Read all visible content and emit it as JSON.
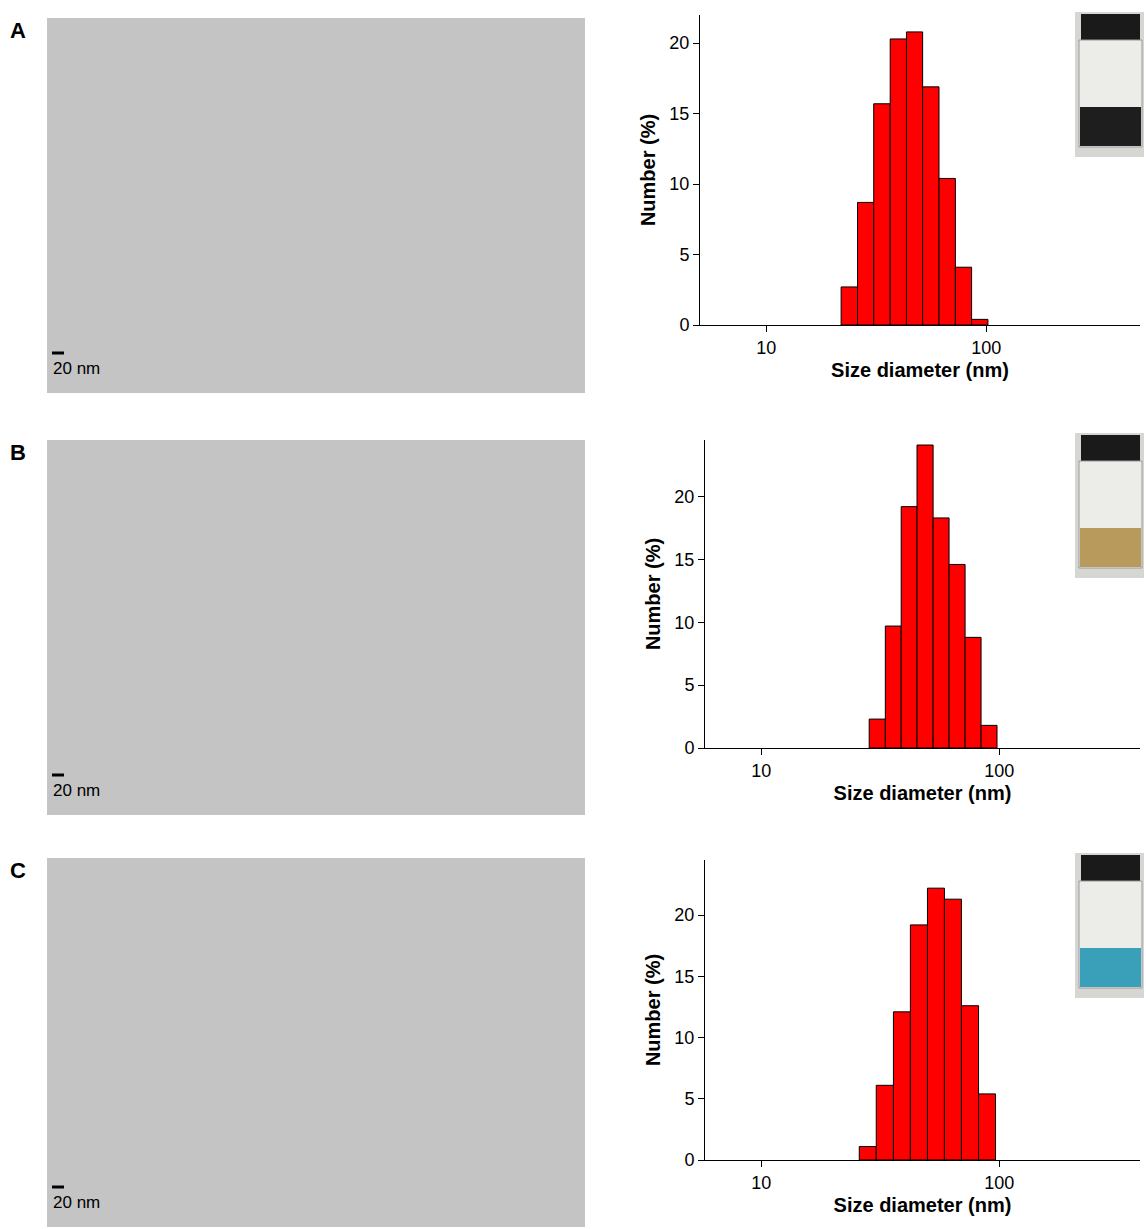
{
  "chart_data": [
    {
      "type": "histogram",
      "panel": "A",
      "scale_bar": "20 nm",
      "xlabel": "Size diameter (nm)",
      "ylabel": "Number (%)",
      "bins": [
        21.9,
        26.0,
        30.8,
        36.6,
        43.4,
        51.4,
        61.0,
        72.4,
        85.8,
        101.8
      ],
      "values": [
        2.7,
        8.7,
        15.7,
        20.3,
        20.8,
        16.9,
        10.4,
        4.1,
        0.4
      ],
      "color": "#ff0000",
      "log": "x",
      "grid": false,
      "xlim": [
        5,
        500
      ],
      "xticks": [
        10,
        100
      ],
      "ylim": [
        0,
        22
      ],
      "yticks": [
        0,
        5,
        10,
        15,
        20
      ]
    },
    {
      "type": "histogram",
      "panel": "B",
      "scale_bar": "20 nm",
      "xlabel": "Size diameter (nm)",
      "ylabel": "Number (%)",
      "bins": [
        28.4,
        33.2,
        38.7,
        45.1,
        52.7,
        61.5,
        71.8,
        83.8,
        97.8
      ],
      "values": [
        2.3,
        9.7,
        19.2,
        24.1,
        18.3,
        14.6,
        8.8,
        1.8
      ],
      "color": "#ff0000",
      "log": "x",
      "grid": false,
      "xlim": [
        5.8,
        390
      ],
      "xticks": [
        10,
        100
      ],
      "ylim": [
        0,
        24.5
      ],
      "yticks": [
        0,
        5,
        10,
        15,
        20
      ]
    },
    {
      "type": "histogram",
      "panel": "C",
      "scale_bar": "20 nm",
      "xlabel": "Size diameter (nm)",
      "ylabel": "Number (%)",
      "bins": [
        25.8,
        30.4,
        35.9,
        42.3,
        49.9,
        58.8,
        69.3,
        81.8,
        96.4
      ],
      "values": [
        1.1,
        6.1,
        12.1,
        19.2,
        22.2,
        21.3,
        12.6,
        5.4
      ],
      "color": "#ff0000",
      "log": "x",
      "grid": false,
      "xlim": [
        5.8,
        390
      ],
      "xticks": [
        10,
        100
      ],
      "ylim": [
        0,
        24.5
      ],
      "yticks": [
        0,
        5,
        10,
        15,
        20
      ]
    }
  ]
}
